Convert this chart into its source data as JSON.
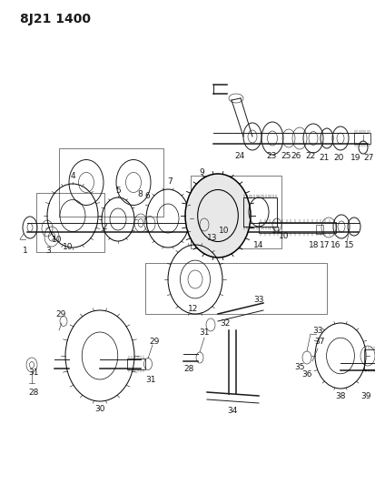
{
  "title": "8J21 1400",
  "bg_color": "#ffffff",
  "line_color": "#1a1a1a",
  "title_fontsize": 10,
  "fig_width": 4.13,
  "fig_height": 5.33,
  "dpi": 100
}
